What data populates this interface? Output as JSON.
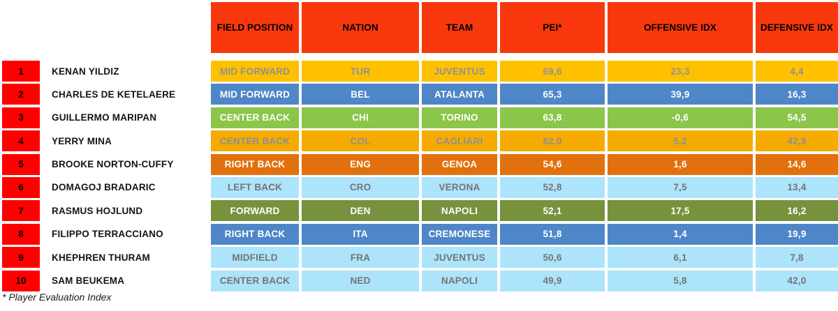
{
  "chart_data": {
    "type": "table",
    "columns": [
      "FIELD POSITION",
      "NATION",
      "TEAM",
      "PEI*",
      "OFFENSIVE IDX",
      "DEFENSIVE IDX"
    ],
    "rows": [
      {
        "rank": "1",
        "player": "KENAN YILDIZ",
        "position": "MID FORWARD",
        "nation": "TUR",
        "team": "JUVENTUS",
        "pei": "69,6",
        "offensive_idx": "23,3",
        "defensive_idx": "4,4",
        "theme": "amber"
      },
      {
        "rank": "2",
        "player": "CHARLES DE KETELAERE",
        "position": "MID FORWARD",
        "nation": "BEL",
        "team": "ATALANTA",
        "pei": "65,3",
        "offensive_idx": "39,9",
        "defensive_idx": "16,3",
        "theme": "blue"
      },
      {
        "rank": "3",
        "player": "GUILLERMO MARIPAN",
        "position": "CENTER BACK",
        "nation": "CHI",
        "team": "TORINO",
        "pei": "63,8",
        "offensive_idx": "-0,6",
        "defensive_idx": "54,5",
        "theme": "green"
      },
      {
        "rank": "4",
        "player": "YERRY MINA",
        "position": "CENTER BACK",
        "nation": "COL",
        "team": "CAGLIARI",
        "pei": "62,0",
        "offensive_idx": "5,2",
        "defensive_idx": "42,9",
        "theme": "gold"
      },
      {
        "rank": "5",
        "player": "BROOKE NORTON-CUFFY",
        "position": "RIGHT BACK",
        "nation": "ENG",
        "team": "GENOA",
        "pei": "54,6",
        "offensive_idx": "1,6",
        "defensive_idx": "14,6",
        "theme": "darkorange"
      },
      {
        "rank": "6",
        "player": "DOMAGOJ BRADARIC",
        "position": "LEFT BACK",
        "nation": "CRO",
        "team": "VERONA",
        "pei": "52,8",
        "offensive_idx": "7,5",
        "defensive_idx": "13,4",
        "theme": "lightblue"
      },
      {
        "rank": "7",
        "player": "RASMUS HOJLUND",
        "position": "FORWARD",
        "nation": "DEN",
        "team": "NAPOLI",
        "pei": "52,1",
        "offensive_idx": "17,5",
        "defensive_idx": "16,2",
        "theme": "olive"
      },
      {
        "rank": "8",
        "player": "FILIPPO TERRACCIANO",
        "position": "RIGHT BACK",
        "nation": "ITA",
        "team": "CREMONESE",
        "pei": "51,8",
        "offensive_idx": "1,4",
        "defensive_idx": "19,9",
        "theme": "blue"
      },
      {
        "rank": "9",
        "player": "KHEPHREN THURAM",
        "position": "MIDFIELD",
        "nation": "FRA",
        "team": "JUVENTUS",
        "pei": "50,6",
        "offensive_idx": "6,1",
        "defensive_idx": "7,8",
        "theme": "lightblue"
      },
      {
        "rank": "10",
        "player": "SAM BEUKEMA",
        "position": "CENTER BACK",
        "nation": "NED",
        "team": "NAPOLI",
        "pei": "49,9",
        "offensive_idx": "5,8",
        "defensive_idx": "42,0",
        "theme": "lightblue"
      }
    ],
    "footnote": "* Player Evaluation Index"
  },
  "colors": {
    "header_bg": "#F8380C",
    "header_text": "#000000",
    "rank_bg": "#FF0000",
    "rank_text": "#000000",
    "name_text": "#141414",
    "themes": {
      "amber": {
        "bg": "#FFC000",
        "fg": "#919191"
      },
      "blue": {
        "bg": "#4E86C8",
        "fg": "#FFFFFF"
      },
      "green": {
        "bg": "#8BC549",
        "fg": "#FFFFFF"
      },
      "gold": {
        "bg": "#F5AB00",
        "fg": "#8F8F8F"
      },
      "darkorange": {
        "bg": "#E2710D",
        "fg": "#FFFFFF"
      },
      "lightblue": {
        "bg": "#ACE4FB",
        "fg": "#747474"
      },
      "olive": {
        "bg": "#76923D",
        "fg": "#FFFFFF"
      }
    }
  }
}
